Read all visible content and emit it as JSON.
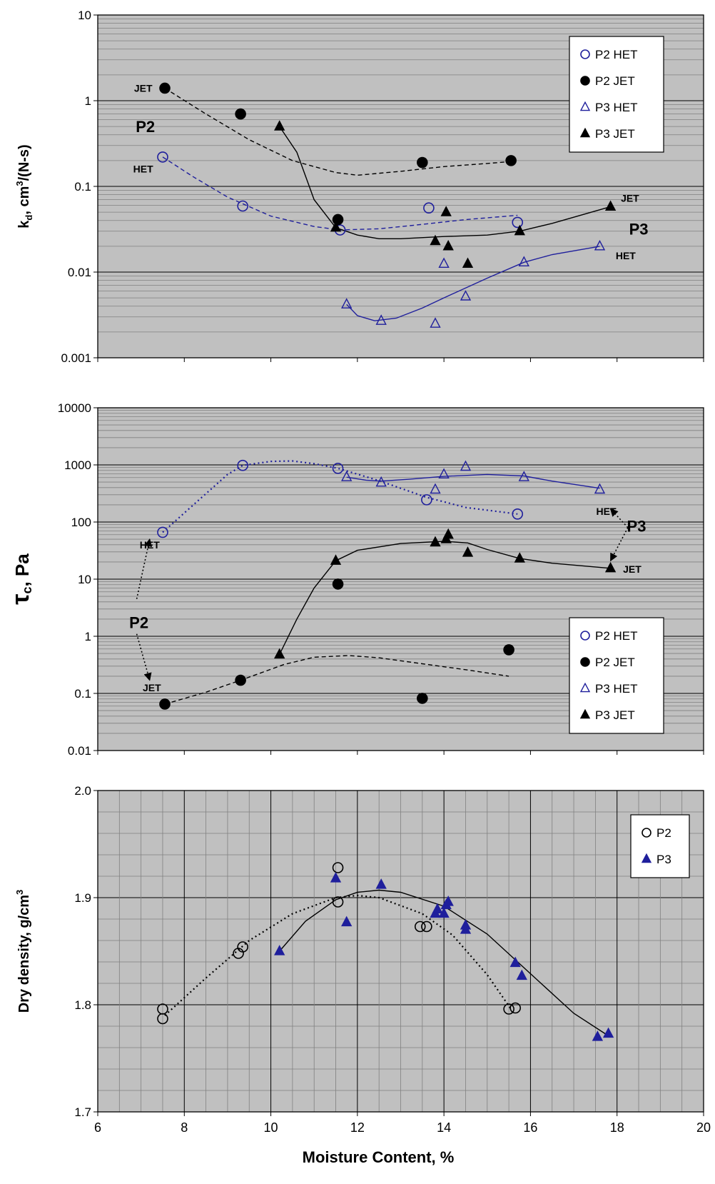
{
  "figure": {
    "xlabel": "Moisture Content, %",
    "xticks": [
      "6",
      "8",
      "10",
      "12",
      "14",
      "16",
      "18",
      "20"
    ]
  },
  "colors": {
    "plot_bg": "#c0c0c0",
    "minor_grid": "#808080",
    "major_grid": "#000000",
    "het": "#1f1f9c",
    "jet": "#000000"
  },
  "chart_data": [
    {
      "id": "kd",
      "type": "scatter",
      "yscale": "log",
      "ylabel": "kd, cm3/(N-s)",
      "ylabel_parts": {
        "main": "k",
        "sub": "d",
        "mid": ", cm",
        "sup": "3",
        "end": "/(N-s)"
      },
      "xlim": [
        6,
        20
      ],
      "ylim": [
        0.001,
        10
      ],
      "yticks": [
        "10",
        "1",
        "0.1",
        "0.01",
        "0.001"
      ],
      "legend": {
        "placement": "top-right",
        "entries": [
          "P2 HET",
          "P2 JET",
          "P3 HET",
          "P3 JET"
        ]
      },
      "series": [
        {
          "name": "P2 HET",
          "marker": "open-circle",
          "color": "het",
          "points": [
            [
              7.5,
              0.22
            ],
            [
              9.35,
              0.059
            ],
            [
              11.6,
              0.031
            ],
            [
              13.65,
              0.056
            ],
            [
              15.7,
              0.038
            ]
          ]
        },
        {
          "name": "P2 JET",
          "marker": "filled-circle",
          "color": "jet",
          "points": [
            [
              7.55,
              1.4
            ],
            [
              9.3,
              0.7
            ],
            [
              11.55,
              0.041
            ],
            [
              13.5,
              0.19
            ],
            [
              15.55,
              0.2
            ]
          ]
        },
        {
          "name": "P3 HET",
          "marker": "open-triangle",
          "color": "het",
          "points": [
            [
              11.75,
              0.0042
            ],
            [
              12.55,
              0.0027
            ],
            [
              13.8,
              0.0025
            ],
            [
              14.0,
              0.0125
            ],
            [
              14.5,
              0.0052
            ],
            [
              15.85,
              0.013
            ],
            [
              17.6,
              0.02
            ]
          ]
        },
        {
          "name": "P3 JET",
          "marker": "filled-triangle",
          "color": "jet",
          "points": [
            [
              10.2,
              0.5
            ],
            [
              11.5,
              0.033
            ],
            [
              13.8,
              0.023
            ],
            [
              14.05,
              0.05
            ],
            [
              14.1,
              0.02
            ],
            [
              14.55,
              0.0125
            ],
            [
              15.75,
              0.03
            ],
            [
              17.85,
              0.058
            ]
          ]
        }
      ],
      "trends": [
        {
          "name": "P2 JET",
          "style": "dashed",
          "color": "jet",
          "points": [
            [
              7.55,
              1.4
            ],
            [
              8.5,
              0.7
            ],
            [
              9.5,
              0.35
            ],
            [
              10.5,
              0.2
            ],
            [
              11.5,
              0.145
            ],
            [
              12,
              0.135
            ],
            [
              13,
              0.15
            ],
            [
              14,
              0.17
            ],
            [
              15,
              0.185
            ],
            [
              15.55,
              0.195
            ]
          ]
        },
        {
          "name": "P2 HET",
          "style": "dashed",
          "color": "het",
          "points": [
            [
              7.5,
              0.22
            ],
            [
              8.2,
              0.13
            ],
            [
              9,
              0.075
            ],
            [
              10,
              0.045
            ],
            [
              11,
              0.034
            ],
            [
              11.6,
              0.031
            ],
            [
              12.5,
              0.032
            ],
            [
              13.5,
              0.036
            ],
            [
              14.5,
              0.041
            ],
            [
              15.7,
              0.046
            ]
          ]
        },
        {
          "name": "P3 JET",
          "style": "solid",
          "color": "jet",
          "points": [
            [
              10.2,
              0.5
            ],
            [
              10.6,
              0.25
            ],
            [
              11,
              0.07
            ],
            [
              11.5,
              0.033
            ],
            [
              12,
              0.027
            ],
            [
              12.5,
              0.0245
            ],
            [
              13,
              0.0245
            ],
            [
              14,
              0.026
            ],
            [
              15,
              0.027
            ],
            [
              15.75,
              0.03
            ],
            [
              16.5,
              0.037
            ],
            [
              17.85,
              0.058
            ]
          ]
        },
        {
          "name": "P3 HET",
          "style": "solid",
          "color": "het",
          "points": [
            [
              11.75,
              0.0042
            ],
            [
              12,
              0.0031
            ],
            [
              12.4,
              0.0027
            ],
            [
              12.9,
              0.0029
            ],
            [
              13.5,
              0.0038
            ],
            [
              14,
              0.005
            ],
            [
              15,
              0.0085
            ],
            [
              15.85,
              0.013
            ],
            [
              16.5,
              0.016
            ],
            [
              17.6,
              0.02
            ]
          ]
        }
      ],
      "annotations": [
        {
          "text": "JET",
          "x": 7.05,
          "y": 1.4,
          "size": "small"
        },
        {
          "text": "P2",
          "x": 7.1,
          "y": 0.5,
          "size": "large"
        },
        {
          "text": "HET",
          "x": 7.05,
          "y": 0.16,
          "size": "small"
        },
        {
          "text": "JET",
          "x": 18.3,
          "y": 0.073,
          "size": "small"
        },
        {
          "text": "P3",
          "x": 18.5,
          "y": 0.032,
          "size": "large"
        },
        {
          "text": "HET",
          "x": 18.2,
          "y": 0.0155,
          "size": "small"
        }
      ]
    },
    {
      "id": "tau",
      "type": "scatter",
      "yscale": "log",
      "ylabel": "τc, Pa",
      "ylabel_parts": {
        "main": "τ",
        "sub": "c",
        "end": ", Pa"
      },
      "xlim": [
        6,
        20
      ],
      "ylim": [
        0.01,
        10000
      ],
      "yticks": [
        "10000",
        "1000",
        "100",
        "10",
        "1",
        "0.1",
        "0.01"
      ],
      "legend": {
        "placement": "bottom-right",
        "entries": [
          "P2 HET",
          "P2 JET",
          "P3 HET",
          "P3 JET"
        ]
      },
      "series": [
        {
          "name": "P2 HET",
          "marker": "open-circle",
          "color": "het",
          "points": [
            [
              7.5,
              66
            ],
            [
              9.35,
              980
            ],
            [
              11.55,
              870
            ],
            [
              13.6,
              245
            ],
            [
              15.7,
              138
            ]
          ]
        },
        {
          "name": "P2 JET",
          "marker": "filled-circle",
          "color": "jet",
          "points": [
            [
              7.55,
              0.065
            ],
            [
              9.3,
              0.17
            ],
            [
              11.55,
              8.2
            ],
            [
              13.5,
              0.082
            ],
            [
              15.5,
              0.58
            ]
          ]
        },
        {
          "name": "P3 HET",
          "marker": "open-triangle",
          "color": "het",
          "points": [
            [
              11.75,
              610
            ],
            [
              12.55,
              490
            ],
            [
              13.8,
              370
            ],
            [
              14.0,
              680
            ],
            [
              14.5,
              930
            ],
            [
              15.85,
              610
            ],
            [
              17.6,
              370
            ]
          ]
        },
        {
          "name": "P3 JET",
          "marker": "filled-triangle",
          "color": "jet",
          "points": [
            [
              10.2,
              0.48
            ],
            [
              11.5,
              21
            ],
            [
              13.8,
              44
            ],
            [
              14.05,
              50
            ],
            [
              14.1,
              60
            ],
            [
              14.55,
              29
            ],
            [
              15.75,
              23
            ],
            [
              17.85,
              15.5
            ]
          ]
        }
      ],
      "trends": [
        {
          "name": "P2 HET",
          "style": "dotted",
          "color": "het",
          "points": [
            [
              7.5,
              66
            ],
            [
              8.3,
              230
            ],
            [
              9,
              680
            ],
            [
              9.35,
              980
            ],
            [
              10,
              1150
            ],
            [
              10.5,
              1170
            ],
            [
              11,
              1050
            ],
            [
              11.55,
              870
            ],
            [
              12.5,
              530
            ],
            [
              13.6,
              270
            ],
            [
              14.5,
              180
            ],
            [
              15.7,
              138
            ]
          ]
        },
        {
          "name": "P3 HET",
          "style": "solid",
          "color": "het",
          "points": [
            [
              11.75,
              610
            ],
            [
              12.2,
              540
            ],
            [
              12.55,
              520
            ],
            [
              13.2,
              560
            ],
            [
              14,
              630
            ],
            [
              15,
              680
            ],
            [
              15.85,
              640
            ],
            [
              16.5,
              520
            ],
            [
              17.6,
              390
            ]
          ]
        },
        {
          "name": "P3 JET",
          "style": "solid",
          "color": "jet",
          "points": [
            [
              10.2,
              0.48
            ],
            [
              10.6,
              2
            ],
            [
              11,
              7
            ],
            [
              11.5,
              21
            ],
            [
              12,
              32
            ],
            [
              13,
              42
            ],
            [
              14,
              46
            ],
            [
              14.55,
              43
            ],
            [
              15,
              33
            ],
            [
              15.75,
              23
            ],
            [
              16.5,
              19
            ],
            [
              17.85,
              15.5
            ]
          ]
        },
        {
          "name": "P2 JET",
          "style": "dashed",
          "color": "jet",
          "points": [
            [
              7.55,
              0.065
            ],
            [
              8.5,
              0.105
            ],
            [
              9.3,
              0.17
            ],
            [
              10.3,
              0.32
            ],
            [
              11,
              0.43
            ],
            [
              11.8,
              0.46
            ],
            [
              12.5,
              0.42
            ],
            [
              13.5,
              0.33
            ],
            [
              14.5,
              0.26
            ],
            [
              15.5,
              0.2
            ]
          ]
        }
      ],
      "annotations": [
        {
          "text": "HET",
          "x": 17.75,
          "y": 155,
          "size": "small"
        },
        {
          "text": "P3",
          "x": 18.45,
          "y": 85,
          "size": "large"
        },
        {
          "text": "JET",
          "x": 18.35,
          "y": 15,
          "size": "small"
        },
        {
          "text": "HET",
          "x": 7.2,
          "y": 40,
          "size": "small"
        },
        {
          "text": "P2",
          "x": 6.95,
          "y": 1.75,
          "size": "large"
        },
        {
          "text": "JET",
          "x": 7.25,
          "y": 0.126,
          "size": "small"
        }
      ],
      "arrows": [
        {
          "from": [
            18.25,
            80
          ],
          "to": [
            17.85,
            170
          ]
        },
        {
          "from": [
            18.25,
            80
          ],
          "to": [
            17.85,
            21
          ]
        },
        {
          "from": [
            6.9,
            4.5
          ],
          "to": [
            7.2,
            50
          ]
        },
        {
          "from": [
            6.9,
            1.1
          ],
          "to": [
            7.2,
            0.17
          ]
        }
      ]
    },
    {
      "id": "density",
      "type": "scatter",
      "yscale": "linear",
      "ylabel": "Dry density, g/cm3",
      "ylabel_parts": {
        "main": "Dry density, g/cm",
        "sup": "3"
      },
      "xlim": [
        6,
        20
      ],
      "ylim": [
        1.7,
        2.0
      ],
      "yticks": [
        "2.0",
        "1.9",
        "1.8",
        "1.7"
      ],
      "legend": {
        "placement": "top-right",
        "entries": [
          "P2",
          "P3"
        ]
      },
      "series": [
        {
          "name": "P2",
          "marker": "open-circle",
          "color": "jet",
          "points": [
            [
              7.5,
              1.796
            ],
            [
              7.5,
              1.787
            ],
            [
              9.25,
              1.848
            ],
            [
              9.35,
              1.854
            ],
            [
              11.55,
              1.928
            ],
            [
              11.55,
              1.896
            ],
            [
              13.45,
              1.873
            ],
            [
              13.6,
              1.873
            ],
            [
              15.5,
              1.796
            ],
            [
              15.65,
              1.797
            ]
          ]
        },
        {
          "name": "P3",
          "marker": "filled-triangle",
          "color": "het",
          "points": [
            [
              10.2,
              1.85
            ],
            [
              11.5,
              1.918
            ],
            [
              11.75,
              1.877
            ],
            [
              12.55,
              1.912
            ],
            [
              13.8,
              1.885
            ],
            [
              13.85,
              1.889
            ],
            [
              14.0,
              1.885
            ],
            [
              14.05,
              1.893
            ],
            [
              14.1,
              1.896
            ],
            [
              14.5,
              1.874
            ],
            [
              14.5,
              1.87
            ],
            [
              15.65,
              1.839
            ],
            [
              15.8,
              1.827
            ],
            [
              17.55,
              1.77
            ],
            [
              17.8,
              1.773
            ]
          ]
        }
      ],
      "trends": [
        {
          "name": "P2",
          "style": "dotted",
          "color": "jet",
          "points": [
            [
              7.55,
              1.79
            ],
            [
              8.5,
              1.825
            ],
            [
              9.5,
              1.86
            ],
            [
              10.5,
              1.885
            ],
            [
              11.5,
              1.9
            ],
            [
              12,
              1.902
            ],
            [
              12.5,
              1.9
            ],
            [
              13.5,
              1.885
            ],
            [
              14.2,
              1.865
            ],
            [
              15,
              1.828
            ],
            [
              15.55,
              1.796
            ]
          ]
        },
        {
          "name": "P3",
          "style": "solid",
          "color": "jet",
          "points": [
            [
              10.2,
              1.85
            ],
            [
              10.8,
              1.878
            ],
            [
              11.5,
              1.898
            ],
            [
              12,
              1.905
            ],
            [
              12.5,
              1.907
            ],
            [
              13,
              1.905
            ],
            [
              14,
              1.892
            ],
            [
              15,
              1.866
            ],
            [
              16,
              1.829
            ],
            [
              17,
              1.792
            ],
            [
              17.8,
              1.771
            ]
          ]
        }
      ],
      "annotations": [],
      "arrows": []
    }
  ]
}
